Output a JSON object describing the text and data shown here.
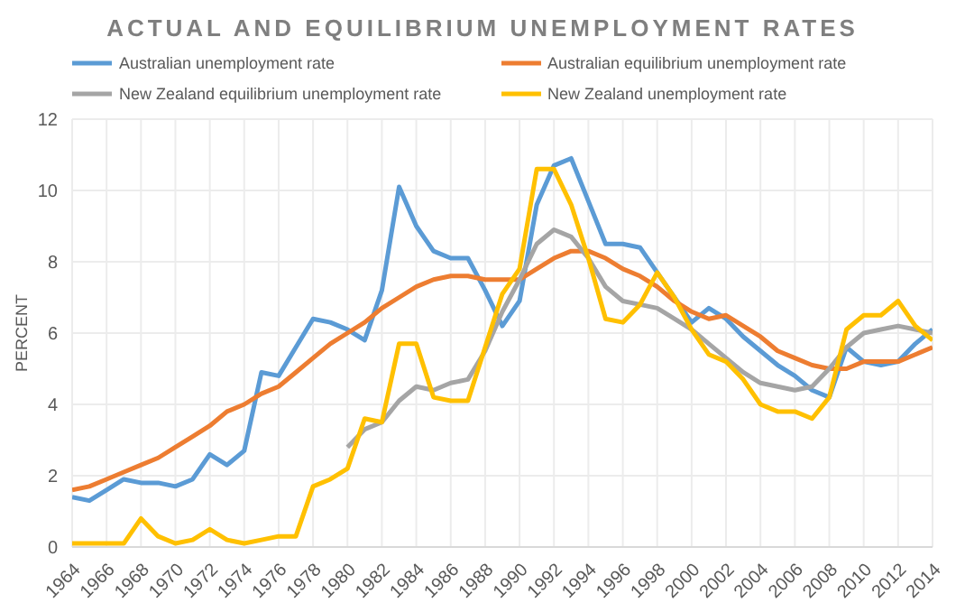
{
  "chart_data": {
    "type": "line",
    "title": "ACTUAL AND EQUILIBRIUM UNEMPLOYMENT RATES",
    "ylabel": "PERCENT",
    "x": [
      1964,
      1965,
      1966,
      1967,
      1968,
      1969,
      1970,
      1971,
      1972,
      1973,
      1974,
      1975,
      1976,
      1977,
      1978,
      1979,
      1980,
      1981,
      1982,
      1983,
      1984,
      1985,
      1986,
      1987,
      1988,
      1989,
      1990,
      1991,
      1992,
      1993,
      1994,
      1995,
      1996,
      1997,
      1998,
      1999,
      2000,
      2001,
      2002,
      2003,
      2004,
      2005,
      2006,
      2007,
      2008,
      2009,
      2010,
      2011,
      2012,
      2013,
      2014
    ],
    "series": [
      {
        "name": "Australian unemployment rate",
        "color": "#5b9bd5",
        "values": [
          1.4,
          1.3,
          1.6,
          1.9,
          1.8,
          1.8,
          1.7,
          1.9,
          2.6,
          2.3,
          2.7,
          4.9,
          4.8,
          5.6,
          6.4,
          6.3,
          6.1,
          5.8,
          7.2,
          10.1,
          9.0,
          8.3,
          8.1,
          8.1,
          7.2,
          6.2,
          6.9,
          9.6,
          10.7,
          10.9,
          9.7,
          8.5,
          8.5,
          8.4,
          7.7,
          7.0,
          6.3,
          6.7,
          6.4,
          5.9,
          5.5,
          5.1,
          4.8,
          4.4,
          4.2,
          5.6,
          5.2,
          5.1,
          5.2,
          5.7,
          6.1
        ]
      },
      {
        "name": "Australian equilibrium unemployment rate",
        "color": "#ed7d31",
        "values": [
          1.6,
          1.7,
          1.9,
          2.1,
          2.3,
          2.5,
          2.8,
          3.1,
          3.4,
          3.8,
          4.0,
          4.3,
          4.5,
          4.9,
          5.3,
          5.7,
          6.0,
          6.3,
          6.7,
          7.0,
          7.3,
          7.5,
          7.6,
          7.6,
          7.5,
          7.5,
          7.5,
          7.8,
          8.1,
          8.3,
          8.3,
          8.1,
          7.8,
          7.6,
          7.3,
          6.9,
          6.6,
          6.4,
          6.5,
          6.2,
          5.9,
          5.5,
          5.3,
          5.1,
          5.0,
          5.0,
          5.2,
          5.2,
          5.2,
          5.4,
          5.6
        ]
      },
      {
        "name": "New Zealand equilibrium unemployment rate",
        "color": "#a5a5a5",
        "values": [
          null,
          null,
          null,
          null,
          null,
          null,
          null,
          null,
          null,
          null,
          null,
          null,
          null,
          null,
          null,
          null,
          2.8,
          3.3,
          3.5,
          4.1,
          4.5,
          4.4,
          4.6,
          4.7,
          5.5,
          6.6,
          7.5,
          8.5,
          8.9,
          8.7,
          8.1,
          7.3,
          6.9,
          6.8,
          6.7,
          6.4,
          6.1,
          5.7,
          5.3,
          4.9,
          4.6,
          4.5,
          4.4,
          4.5,
          5.0,
          5.6,
          6.0,
          6.1,
          6.2,
          6.1,
          6.0
        ]
      },
      {
        "name": "New Zealand unemployment rate",
        "color": "#ffc000",
        "values": [
          0.1,
          0.1,
          0.1,
          0.1,
          0.8,
          0.3,
          0.1,
          0.2,
          0.5,
          0.2,
          0.1,
          0.2,
          0.3,
          0.3,
          1.7,
          1.9,
          2.2,
          3.6,
          3.5,
          5.7,
          5.7,
          4.2,
          4.1,
          4.1,
          5.6,
          7.1,
          7.8,
          10.6,
          10.6,
          9.6,
          8.1,
          6.4,
          6.3,
          6.8,
          7.7,
          7.0,
          6.1,
          5.4,
          5.2,
          4.7,
          4.0,
          3.8,
          3.8,
          3.6,
          4.2,
          6.1,
          6.5,
          6.5,
          6.9,
          6.2,
          5.8
        ]
      }
    ],
    "xlim": [
      1964,
      2014
    ],
    "xticks": [
      1964,
      1966,
      1968,
      1970,
      1972,
      1974,
      1976,
      1978,
      1980,
      1982,
      1984,
      1986,
      1988,
      1990,
      1992,
      1994,
      1996,
      1998,
      2000,
      2002,
      2004,
      2006,
      2008,
      2010,
      2012,
      2014
    ],
    "ylim": [
      0,
      12
    ],
    "yticks": [
      0,
      2,
      4,
      6,
      8,
      10,
      12
    ],
    "grid": true,
    "legend": "top",
    "marker": "none",
    "line_style": "solid"
  }
}
